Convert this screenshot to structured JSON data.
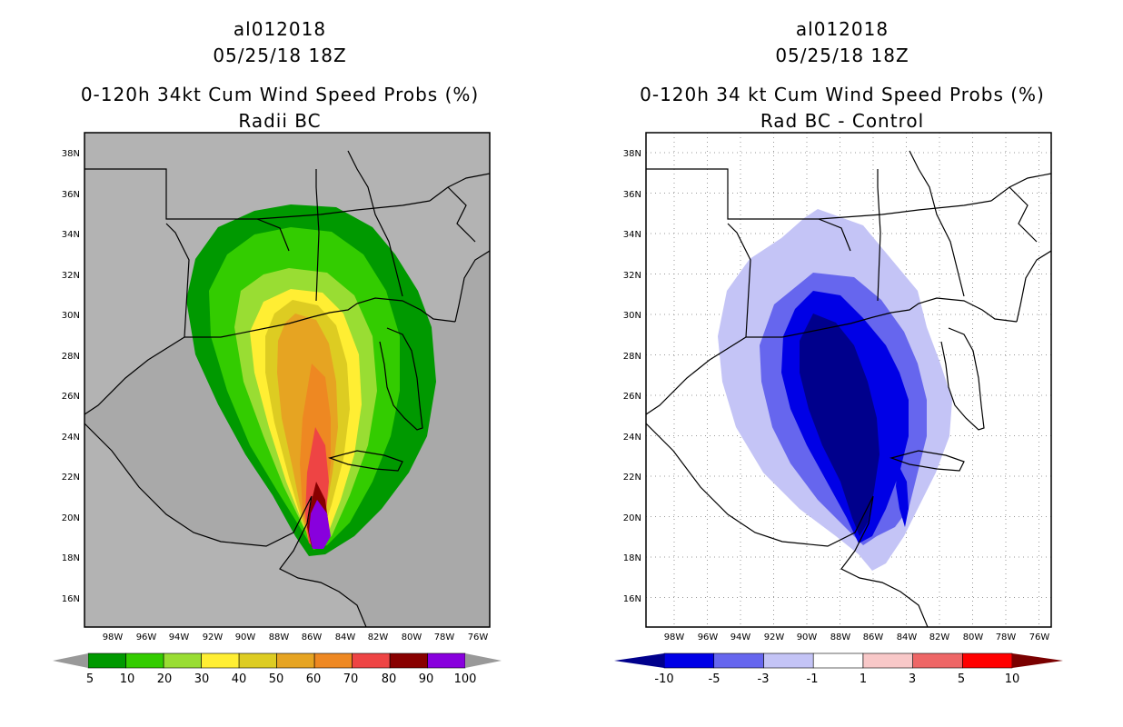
{
  "left_panel": {
    "title_lines": [
      "al012018",
      "05/25/18 18Z",
      "0-120h 34kt Cum Wind Speed Probs (%)",
      "Radii BC"
    ],
    "colorbar": {
      "labels": [
        "5",
        "10",
        "20",
        "30",
        "40",
        "50",
        "60",
        "70",
        "80",
        "90",
        "100"
      ],
      "colors": [
        "#009900",
        "#33cc00",
        "#99dd33",
        "#ffee33",
        "#ddcc22",
        "#e6a422",
        "#ee8822",
        "#ee4444",
        "#880000",
        "#8800dd"
      ]
    }
  },
  "right_panel": {
    "title_lines": [
      "al012018",
      "05/25/18 18Z",
      "0-120h 34 kt Cum Wind Speed Probs (%)",
      "Rad BC - Control"
    ],
    "colorbar": {
      "labels": [
        "-10",
        "-5",
        "-3",
        "-1",
        "1",
        "3",
        "5",
        "10"
      ],
      "colors": [
        "#0000e6",
        "#6666ee",
        "#c4c4f6",
        "#ffffff",
        "#f8c8c8",
        "#ee6666",
        "#ff0000"
      ],
      "end_colors": [
        "#00008c",
        "#7a0000"
      ]
    }
  },
  "axes": {
    "lat_labels": [
      "38N",
      "36N",
      "34N",
      "32N",
      "30N",
      "28N",
      "26N",
      "24N",
      "22N",
      "20N",
      "18N",
      "16N"
    ],
    "lon_labels": [
      "98W",
      "96W",
      "94W",
      "92W",
      "90W",
      "88W",
      "86W",
      "84W",
      "82W",
      "80W",
      "78W",
      "76W"
    ]
  },
  "colors": {
    "ocean_left": "#a9a9a9",
    "ocean_right": "#ffffff",
    "coast": "#000000"
  }
}
